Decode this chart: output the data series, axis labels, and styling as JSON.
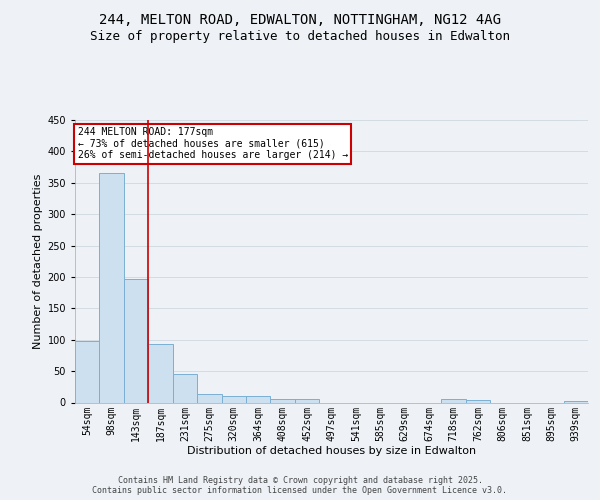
{
  "title_line1": "244, MELTON ROAD, EDWALTON, NOTTINGHAM, NG12 4AG",
  "title_line2": "Size of property relative to detached houses in Edwalton",
  "xlabel": "Distribution of detached houses by size in Edwalton",
  "ylabel": "Number of detached properties",
  "footer_line1": "Contains HM Land Registry data © Crown copyright and database right 2025.",
  "footer_line2": "Contains public sector information licensed under the Open Government Licence v3.0.",
  "categories": [
    "54sqm",
    "98sqm",
    "143sqm",
    "187sqm",
    "231sqm",
    "275sqm",
    "320sqm",
    "364sqm",
    "408sqm",
    "452sqm",
    "497sqm",
    "541sqm",
    "585sqm",
    "629sqm",
    "674sqm",
    "718sqm",
    "762sqm",
    "806sqm",
    "851sqm",
    "895sqm",
    "939sqm"
  ],
  "values": [
    98,
    365,
    196,
    93,
    45,
    14,
    10,
    10,
    6,
    6,
    0,
    0,
    0,
    0,
    0,
    5,
    4,
    0,
    0,
    0,
    3
  ],
  "bar_color": "#cce0f0",
  "bar_edge_color": "#7ab0d4",
  "grid_color": "#d0d8e0",
  "vline_x": 2.5,
  "vline_color": "#cc0000",
  "annotation_text": "244 MELTON ROAD: 177sqm\n← 73% of detached houses are smaller (615)\n26% of semi-detached houses are larger (214) →",
  "annotation_box_color": "#cc0000",
  "annotation_bg": "#ffffff",
  "ylim": [
    0,
    450
  ],
  "yticks": [
    0,
    50,
    100,
    150,
    200,
    250,
    300,
    350,
    400,
    450
  ],
  "bg_color": "#eef2f7",
  "plot_bg_color": "#eef2f7",
  "title_fontsize": 10,
  "subtitle_fontsize": 9,
  "axis_label_fontsize": 8,
  "tick_fontsize": 7,
  "footer_fontsize": 6
}
